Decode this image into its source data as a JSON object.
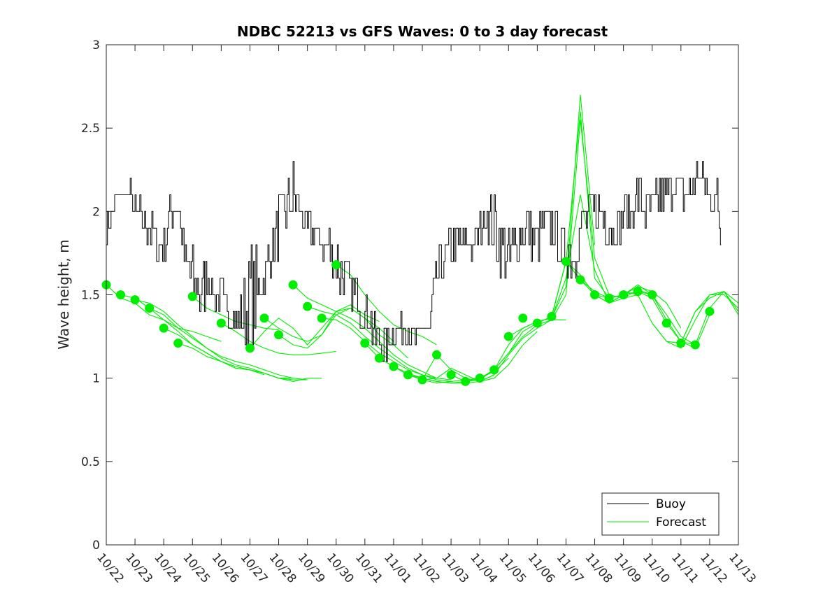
{
  "chart_data": {
    "type": "line",
    "title": "NDBC 52213 vs GFS Waves: 0 to 3 day forecast",
    "xlabel": "",
    "ylabel": "Wave height, m",
    "ylim": [
      0,
      3
    ],
    "yticks": [
      "0",
      "0.5",
      "1",
      "1.5",
      "2",
      "2.5",
      "3"
    ],
    "xlim": [
      0,
      22
    ],
    "xticks": [
      "10/22",
      "10/23",
      "10/24",
      "10/25",
      "10/26",
      "10/27",
      "10/28",
      "10/29",
      "10/30",
      "10/31",
      "11/01",
      "11/02",
      "11/03",
      "11/04",
      "11/05",
      "11/06",
      "11/07",
      "11/08",
      "11/09",
      "11/10",
      "11/11",
      "11/12",
      "11/13"
    ],
    "legend": {
      "position": "bottom-right",
      "entries": [
        "Buoy",
        "Forecast"
      ]
    },
    "colors": {
      "buoy": "#000000",
      "forecast": "#00ee00",
      "axis": "#262626"
    },
    "series": [
      {
        "name": "Buoy",
        "x": [
          0,
          0.25,
          0.5,
          0.75,
          1,
          1.25,
          1.5,
          1.75,
          2,
          2.25,
          2.5,
          2.75,
          3,
          3.25,
          3.5,
          3.75,
          4,
          4.25,
          4.5,
          4.75,
          5,
          5.25,
          5.5,
          5.75,
          6,
          6.25,
          6.5,
          6.75,
          7,
          7.25,
          7.5,
          7.75,
          8,
          8.25,
          8.5,
          8.75,
          9,
          9.25,
          9.5,
          9.75,
          10,
          10.25,
          10.5,
          10.75,
          11,
          11.25,
          11.5,
          11.75,
          12,
          12.25,
          12.5,
          12.75,
          13,
          13.25,
          13.5,
          13.75,
          14,
          14.25,
          14.5,
          14.75,
          15,
          15.25,
          15.5,
          15.75,
          16,
          16.25,
          16.5,
          16.75,
          17,
          17.25,
          17.5,
          17.75,
          18,
          18.25,
          18.5,
          18.75,
          19,
          19.25,
          19.5,
          19.75,
          20,
          20.25,
          20.5,
          20.75,
          21,
          21.25,
          21.4
        ],
        "values": [
          1.9,
          2.0,
          2.1,
          2.1,
          2.0,
          1.9,
          1.9,
          1.8,
          1.8,
          2.0,
          2.0,
          1.7,
          1.6,
          1.5,
          1.6,
          1.5,
          1.5,
          1.4,
          1.3,
          1.4,
          1.5,
          1.5,
          1.6,
          1.8,
          1.9,
          2.0,
          2.1,
          2.0,
          1.9,
          1.9,
          1.8,
          1.8,
          1.7,
          1.6,
          1.5,
          1.5,
          1.4,
          1.3,
          1.2,
          1.2,
          1.3,
          1.3,
          1.3,
          1.2,
          1.3,
          1.3,
          1.6,
          1.7,
          1.8,
          1.8,
          1.8,
          1.8,
          1.9,
          2.0,
          1.9,
          1.8,
          1.7,
          1.8,
          1.9,
          1.9,
          1.8,
          1.9,
          1.9,
          1.8,
          1.8,
          1.7,
          1.9,
          2.0,
          2.0,
          2.0,
          1.9,
          1.9,
          2.0,
          2.0,
          2.1,
          2.0,
          2.0,
          2.1,
          2.1,
          2.2,
          2.1,
          2.1,
          2.2,
          2.2,
          2.1,
          2.1,
          1.8
        ],
        "noise": [
          0.15,
          0.1,
          0.05,
          0.1,
          0.15,
          0.1,
          0.1,
          0.15,
          0.15,
          0.1,
          0.1,
          0.15,
          0.2,
          0.15,
          0.1,
          0.1,
          0.1,
          0.1,
          0.15,
          0.25,
          0.3,
          0.15,
          0.15,
          0.15,
          0.2,
          0.2,
          0.2,
          0.1,
          0.1,
          0.1,
          0.15,
          0.15,
          0.2,
          0.15,
          0.15,
          0.15,
          0.1,
          0.1,
          0.1,
          0.1,
          0.1,
          0.1,
          0.1,
          0.1,
          0.1,
          0.15,
          0.15,
          0.15,
          0.15,
          0.15,
          0.1,
          0.1,
          0.1,
          0.15,
          0.2,
          0.2,
          0.2,
          0.2,
          0.2,
          0.15,
          0.15,
          0.15,
          0.15,
          0.15,
          0.15,
          0.15,
          0.15,
          0.15,
          0.15,
          0.15,
          0.15,
          0.15,
          0.15,
          0.15,
          0.15,
          0.15,
          0.2,
          0.15,
          0.15,
          0.1,
          0.1,
          0.1,
          0.1,
          0.1,
          0.1,
          0.1,
          0.05
        ]
      }
    ],
    "forecast_runs": [
      {
        "x": [
          0,
          0.5,
          1,
          1.5,
          2,
          2.5,
          3,
          3.5,
          4
        ],
        "values": [
          1.56,
          1.48,
          1.45,
          1.38,
          1.35,
          1.3,
          1.28,
          1.25,
          1.22
        ]
      },
      {
        "x": [
          0.5,
          1,
          1.5,
          2,
          2.5,
          3,
          3.5,
          4,
          4.5,
          5,
          5.5
        ],
        "values": [
          1.5,
          1.48,
          1.42,
          1.35,
          1.28,
          1.2,
          1.15,
          1.1,
          1.06,
          1.05,
          1.02
        ]
      },
      {
        "x": [
          1,
          1.5,
          2,
          2.5,
          3,
          3.5,
          4,
          4.5,
          5,
          5.5,
          6,
          6.5,
          7
        ],
        "values": [
          1.47,
          1.45,
          1.4,
          1.32,
          1.25,
          1.18,
          1.13,
          1.1,
          1.08,
          1.05,
          1.02,
          1.0,
          0.99
        ]
      },
      {
        "x": [
          1.5,
          2,
          2.5,
          3,
          3.5,
          4,
          4.5,
          5,
          5.5,
          6,
          6.5
        ],
        "values": [
          1.42,
          1.38,
          1.3,
          1.24,
          1.18,
          1.12,
          1.08,
          1.06,
          1.03,
          1.0,
          1.0
        ]
      },
      {
        "x": [
          2,
          2.5,
          3,
          3.5,
          4,
          4.5,
          5,
          5.5,
          6,
          6.5,
          7
        ],
        "values": [
          1.3,
          1.26,
          1.2,
          1.15,
          1.1,
          1.07,
          1.05,
          1.03,
          1.0,
          0.99,
          0.99
        ]
      },
      {
        "x": [
          2.5,
          3,
          3.5,
          4,
          4.5,
          5,
          5.5,
          6,
          6.5,
          7,
          7.5
        ],
        "values": [
          1.21,
          1.18,
          1.13,
          1.1,
          1.06,
          1.05,
          1.03,
          1.0,
          0.98,
          1.0,
          1.0
        ]
      },
      {
        "x": [
          3,
          3.5,
          4,
          4.5,
          5,
          5.5,
          6
        ],
        "values": [
          1.49,
          1.42,
          1.38,
          1.34,
          1.32,
          1.3,
          1.29
        ]
      },
      {
        "x": [
          4,
          4.5,
          5,
          5.5,
          6,
          6.5,
          7,
          7.5,
          8
        ],
        "values": [
          1.33,
          1.28,
          1.22,
          1.18,
          1.15,
          1.14,
          1.14,
          1.15,
          1.16
        ]
      },
      {
        "x": [
          5,
          5.5,
          6,
          6.5,
          7,
          7.5,
          8,
          8.5,
          9,
          9.5
        ],
        "values": [
          1.18,
          1.28,
          1.36,
          1.3,
          1.2,
          1.3,
          1.4,
          1.44,
          1.38,
          1.34
        ]
      },
      {
        "x": [
          5.5,
          6,
          6.5,
          7,
          7.5,
          8,
          8.5,
          9,
          9.5,
          10
        ],
        "values": [
          1.36,
          1.3,
          1.25,
          1.22,
          1.26,
          1.38,
          1.42,
          1.36,
          1.3,
          1.22
        ]
      },
      {
        "x": [
          6,
          6.5,
          7,
          7.5,
          8,
          8.5,
          9,
          9.5,
          10,
          10.5
        ],
        "values": [
          1.26,
          1.2,
          1.18,
          1.26,
          1.4,
          1.42,
          1.36,
          1.26,
          1.2,
          1.12
        ]
      },
      {
        "x": [
          6.5,
          7,
          7.5,
          8,
          8.5,
          9,
          9.5,
          10,
          10.5,
          11,
          11.5
        ],
        "values": [
          1.56,
          1.48,
          1.44,
          1.4,
          1.36,
          1.3,
          1.22,
          1.14,
          1.08,
          1.04,
          1.0
        ]
      },
      {
        "x": [
          7,
          7.5,
          8,
          8.5,
          9,
          9.5,
          10,
          10.5,
          11,
          11.5,
          12
        ],
        "values": [
          1.43,
          1.4,
          1.38,
          1.33,
          1.25,
          1.18,
          1.12,
          1.06,
          1.02,
          1.0,
          0.99
        ]
      },
      {
        "x": [
          7.5,
          8,
          8.5,
          9,
          9.5,
          10,
          10.5,
          11,
          11.5,
          12
        ],
        "values": [
          1.36,
          1.35,
          1.3,
          1.22,
          1.15,
          1.1,
          1.05,
          1.02,
          0.99,
          0.98
        ]
      },
      {
        "x": [
          8,
          8.5,
          9,
          9.5,
          10,
          10.5,
          11,
          11.5
        ],
        "values": [
          1.68,
          1.62,
          1.5,
          1.4,
          1.32,
          1.28,
          1.25,
          1.2
        ]
      },
      {
        "x": [
          9,
          9.5,
          10,
          10.5,
          11,
          11.5,
          12,
          12.5,
          13
        ],
        "values": [
          1.21,
          1.12,
          1.07,
          1.03,
          1.0,
          0.98,
          0.97,
          0.98,
          1.0
        ]
      },
      {
        "x": [
          9.5,
          10,
          10.5,
          11,
          11.5,
          12,
          12.5,
          13,
          13.5
        ],
        "values": [
          1.12,
          1.07,
          1.02,
          1.0,
          0.98,
          0.97,
          0.97,
          0.98,
          1.02
        ]
      },
      {
        "x": [
          10,
          10.5,
          11,
          11.5,
          12,
          12.5,
          13,
          13.5,
          14
        ],
        "values": [
          1.07,
          1.02,
          0.99,
          0.97,
          0.98,
          0.99,
          1.0,
          1.04,
          1.12
        ]
      },
      {
        "x": [
          10.5,
          11,
          11.5,
          12,
          12.5,
          13,
          13.5,
          14,
          14.5,
          15
        ],
        "values": [
          1.02,
          0.99,
          1.0,
          1.06,
          1.02,
          0.98,
          1.0,
          1.08,
          1.2,
          1.28
        ]
      },
      {
        "x": [
          11,
          11.5,
          12,
          12.5,
          13,
          13.5,
          14,
          14.5,
          15,
          15.5,
          16
        ],
        "values": [
          0.99,
          1.14,
          1.05,
          1.0,
          0.98,
          1.02,
          1.14,
          1.24,
          1.3,
          1.35,
          1.35
        ]
      },
      {
        "x": [
          12,
          12.5,
          13,
          13.5,
          14,
          14.5,
          15,
          15.5,
          16,
          16.5,
          17
        ],
        "values": [
          1.02,
          0.98,
          0.99,
          1.05,
          1.2,
          1.3,
          1.34,
          1.36,
          1.55,
          2.7,
          1.8
        ]
      },
      {
        "x": [
          13,
          13.5,
          14,
          14.5,
          15,
          15.5,
          16,
          16.5,
          17,
          17.5,
          18
        ],
        "values": [
          1.0,
          1.05,
          1.15,
          1.28,
          1.33,
          1.37,
          1.7,
          2.6,
          1.6,
          1.48,
          1.5
        ]
      },
      {
        "x": [
          13.5,
          14,
          14.5,
          15,
          15.5,
          16,
          16.5,
          17,
          17.5,
          18,
          18.5
        ],
        "values": [
          1.05,
          1.15,
          1.25,
          1.32,
          1.35,
          1.5,
          2.55,
          1.72,
          1.5,
          1.48,
          1.5
        ]
      },
      {
        "x": [
          14,
          14.5,
          15,
          15.5,
          16,
          16.5,
          17,
          17.5,
          18,
          18.5,
          19
        ],
        "values": [
          1.25,
          1.3,
          1.34,
          1.36,
          1.6,
          2.1,
          1.65,
          1.45,
          1.48,
          1.53,
          1.5
        ]
      },
      {
        "x": [
          15,
          15.5,
          16,
          16.5,
          17,
          17.5,
          18,
          18.5,
          19,
          19.5,
          20
        ],
        "values": [
          1.33,
          1.37,
          1.7,
          1.62,
          1.5,
          1.45,
          1.5,
          1.55,
          1.52,
          1.45,
          1.3
        ]
      },
      {
        "x": [
          15.5,
          16,
          16.5,
          17,
          17.5,
          18,
          18.5,
          19,
          19.5,
          20,
          20.5
        ],
        "values": [
          1.37,
          1.7,
          1.59,
          1.52,
          1.48,
          1.5,
          1.56,
          1.5,
          1.38,
          1.25,
          1.2
        ]
      },
      {
        "x": [
          16,
          16.5,
          17,
          17.5,
          18,
          18.5,
          19,
          19.5,
          20,
          20.5,
          21
        ],
        "values": [
          1.7,
          1.59,
          1.5,
          1.45,
          1.5,
          1.52,
          1.48,
          1.33,
          1.22,
          1.18,
          1.38
        ]
      },
      {
        "x": [
          17,
          17.5,
          18,
          18.5,
          19,
          19.5,
          20,
          20.5,
          21,
          21.5,
          22
        ],
        "values": [
          1.5,
          1.48,
          1.5,
          1.52,
          1.5,
          1.35,
          1.22,
          1.2,
          1.42,
          1.52,
          1.4
        ]
      },
      {
        "x": [
          18,
          18.5,
          19,
          19.5,
          20,
          20.5,
          21,
          21.5,
          22
        ],
        "values": [
          1.52,
          1.5,
          1.33,
          1.22,
          1.18,
          1.35,
          1.5,
          1.52,
          1.38
        ]
      },
      {
        "x": [
          19,
          19.5,
          20,
          20.5,
          21,
          21.5,
          22
        ],
        "values": [
          1.33,
          1.22,
          1.21,
          1.4,
          1.5,
          1.5,
          1.42
        ]
      },
      {
        "x": [
          20,
          20.5,
          21,
          21.5,
          22
        ],
        "values": [
          1.21,
          1.4,
          1.48,
          1.52,
          1.45
        ]
      }
    ],
    "analysis_points": {
      "x": [
        0,
        0.5,
        1,
        1.5,
        2,
        2.5,
        3,
        4,
        5,
        5.5,
        6,
        6.5,
        7,
        7.5,
        8,
        9,
        9.5,
        10,
        10.5,
        11,
        11.5,
        12,
        12.5,
        13,
        13.5,
        14,
        14.5,
        15,
        15.5,
        16,
        16.5,
        17,
        17.5,
        18,
        18.5,
        19,
        19.5,
        20,
        20.5,
        21
      ],
      "values": [
        1.56,
        1.5,
        1.47,
        1.42,
        1.3,
        1.21,
        1.49,
        1.33,
        1.18,
        1.36,
        1.26,
        1.56,
        1.43,
        1.36,
        1.68,
        1.21,
        1.12,
        1.07,
        1.02,
        0.99,
        1.14,
        1.02,
        0.98,
        1.0,
        1.05,
        1.25,
        1.36,
        1.33,
        1.37,
        1.7,
        1.59,
        1.5,
        1.48,
        1.5,
        1.52,
        1.5,
        1.33,
        1.21,
        1.2,
        1.4
      ]
    }
  }
}
